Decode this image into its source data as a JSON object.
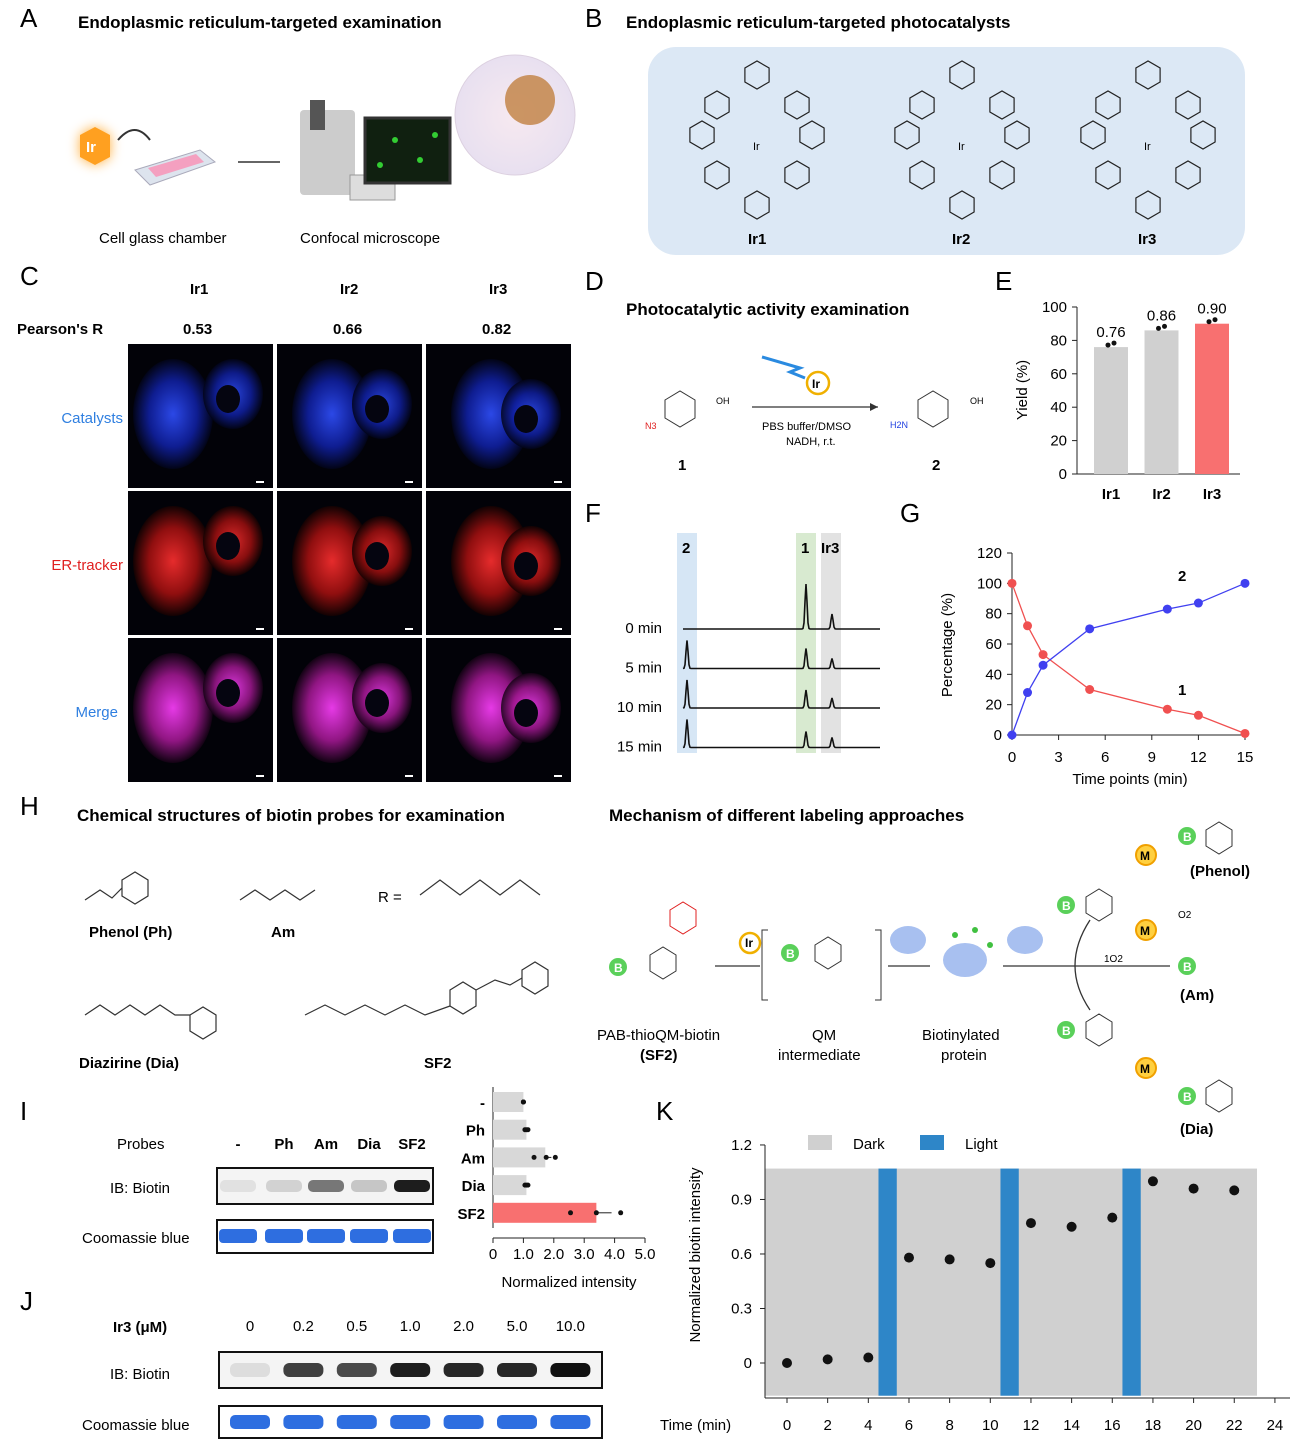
{
  "panels": {
    "A": {
      "letter": "A",
      "title": "Endoplasmic reticulum-targeted examination",
      "chamber_label": "Cell glass chamber",
      "microscope_label": "Confocal microscope",
      "ir_badge": "Ir"
    },
    "B": {
      "letter": "B",
      "title": "Endoplasmic reticulum-targeted photocatalysts",
      "compounds": [
        "Ir1",
        "Ir2",
        "Ir3"
      ]
    },
    "C": {
      "letter": "C",
      "columns": [
        "Ir1",
        "Ir2",
        "Ir3"
      ],
      "pearson_label": "Pearson's R",
      "pearson_values": [
        "0.53",
        "0.66",
        "0.82"
      ],
      "rows": [
        {
          "label": "Catalysts",
          "color": "#2f7fe0"
        },
        {
          "label": "ER-tracker",
          "color": "#e02020"
        },
        {
          "label": "Merge",
          "color": "#2f7fe0"
        }
      ]
    },
    "D": {
      "letter": "D",
      "title": "Photocatalytic activity examination",
      "conditions_1": "PBS buffer/DMSO",
      "conditions_2": "NADH, r.t.",
      "catalyst": "Ir",
      "compound_1": "1",
      "compound_2": "2",
      "n3": "N3",
      "h2n": "H2N",
      "oh": "OH"
    },
    "E": {
      "letter": "E"
    },
    "F": {
      "letter": "F",
      "peaks": [
        "2",
        "1",
        "Ir3"
      ],
      "traces": [
        "0 min",
        "5 min",
        "10 min",
        "15 min"
      ]
    },
    "G": {
      "letter": "G"
    },
    "H": {
      "letter": "H",
      "title_left": "Chemical structures of biotin probes for examination",
      "title_right": "Mechanism of different labeling approaches",
      "probes": [
        "Phenol (Ph)",
        "Am",
        "Diazirine (Dia)",
        "SF2"
      ],
      "r_def": "R =",
      "mech_labels": {
        "sf2": "PAB-thioQM-biotin",
        "sf2_short": "(SF2)",
        "qm1": "QM",
        "qm2": "intermediate",
        "prot1": "Biotinylated",
        "prot2": "protein",
        "phenol": "(Phenol)",
        "am": "(Am)",
        "dia": "(Dia)",
        "o2": "O2",
        "singlet_o2": "1O2",
        "m": "M",
        "b": "B",
        "ir": "Ir"
      }
    },
    "I": {
      "letter": "I",
      "probes_label": "Probes",
      "lanes": [
        "-",
        "Ph",
        "Am",
        "Dia",
        "SF2"
      ],
      "ib_label": "IB: Biotin",
      "coomassie_label": "Coomassie blue"
    },
    "J": {
      "letter": "J",
      "conc_label": "Ir3 (μM)",
      "lanes": [
        "0",
        "0.2",
        "0.5",
        "1.0",
        "2.0",
        "5.0",
        "10.0"
      ],
      "ib_label": "IB: Biotin",
      "coomassie_label": "Coomassie blue"
    },
    "K": {
      "letter": "K"
    }
  },
  "chart_data": [
    {
      "id": "E",
      "type": "bar",
      "categories": [
        "Ir1",
        "Ir2",
        "Ir3"
      ],
      "values": [
        0.76,
        0.86,
        0.9
      ],
      "data_labels": [
        "0.76",
        "0.86",
        "0.90"
      ],
      "ylabel": "Yield (%)",
      "ylim": [
        0,
        100
      ],
      "yticks": [
        0,
        20,
        40,
        60,
        80,
        100
      ],
      "colors": [
        "#d0d0d0",
        "#d0d0d0",
        "#f87070"
      ]
    },
    {
      "id": "G",
      "type": "line",
      "xlabel": "Time points (min)",
      "ylabel": "Percentage (%)",
      "xlim": [
        0,
        15
      ],
      "ylim": [
        0,
        120
      ],
      "xticks": [
        0,
        3,
        6,
        9,
        12,
        15
      ],
      "yticks": [
        0,
        20,
        40,
        60,
        80,
        100,
        120
      ],
      "x": [
        0,
        1,
        2,
        5,
        10,
        12,
        15
      ],
      "series": [
        {
          "name": "1",
          "values": [
            100,
            72,
            53,
            30,
            17,
            13,
            1
          ],
          "color": "#f05050"
        },
        {
          "name": "2",
          "values": [
            0,
            28,
            46,
            70,
            83,
            87,
            100
          ],
          "color": "#4040f0"
        }
      ]
    },
    {
      "id": "I",
      "type": "bar",
      "orientation": "horizontal",
      "categories": [
        "-",
        "Ph",
        "Am",
        "Dia",
        "SF2"
      ],
      "values": [
        1.0,
        1.1,
        1.72,
        1.1,
        3.4
      ],
      "errors": [
        0,
        0.05,
        0.2,
        0.05,
        0.5
      ],
      "points": [
        [
          1,
          1,
          1
        ],
        [
          1.05,
          1.1,
          1.15
        ],
        [
          1.35,
          1.75,
          2.05
        ],
        [
          1.05,
          1.1,
          1.15
        ],
        [
          2.55,
          3.4,
          4.2
        ]
      ],
      "xlabel": "Normalized intensity",
      "xlim": [
        0,
        5
      ],
      "xticks": [
        "0",
        "1.0",
        "2.0",
        "3.0",
        "4.0",
        "5.0"
      ],
      "colors": [
        "#d8d8d8",
        "#d8d8d8",
        "#d8d8d8",
        "#d8d8d8",
        "#f87070"
      ]
    },
    {
      "id": "K",
      "type": "scatter",
      "xlabel": "Time (min)",
      "ylabel": "Normalized biotin intensity",
      "xlim": [
        0,
        24
      ],
      "ylim": [
        0,
        1.2
      ],
      "xticks": [
        0,
        2,
        4,
        6,
        8,
        10,
        12,
        14,
        16,
        18,
        20,
        22,
        24
      ],
      "yticks": [
        "0",
        "0.3",
        "0.6",
        "0.9",
        "1.2"
      ],
      "x": [
        0,
        2,
        4,
        6,
        8,
        10,
        12,
        14,
        16,
        18,
        20,
        22
      ],
      "y": [
        0,
        0.02,
        0.03,
        0.58,
        0.57,
        0.55,
        0.77,
        0.75,
        0.8,
        1.0,
        0.96,
        0.95
      ],
      "light_intervals": [
        [
          4.5,
          5.4
        ],
        [
          10.5,
          11.4
        ],
        [
          16.5,
          17.4
        ]
      ],
      "legend": [
        {
          "label": "Dark",
          "color": "#d0d0d0"
        },
        {
          "label": "Light",
          "color": "#2e86c8"
        }
      ],
      "legend_position": "top"
    }
  ]
}
